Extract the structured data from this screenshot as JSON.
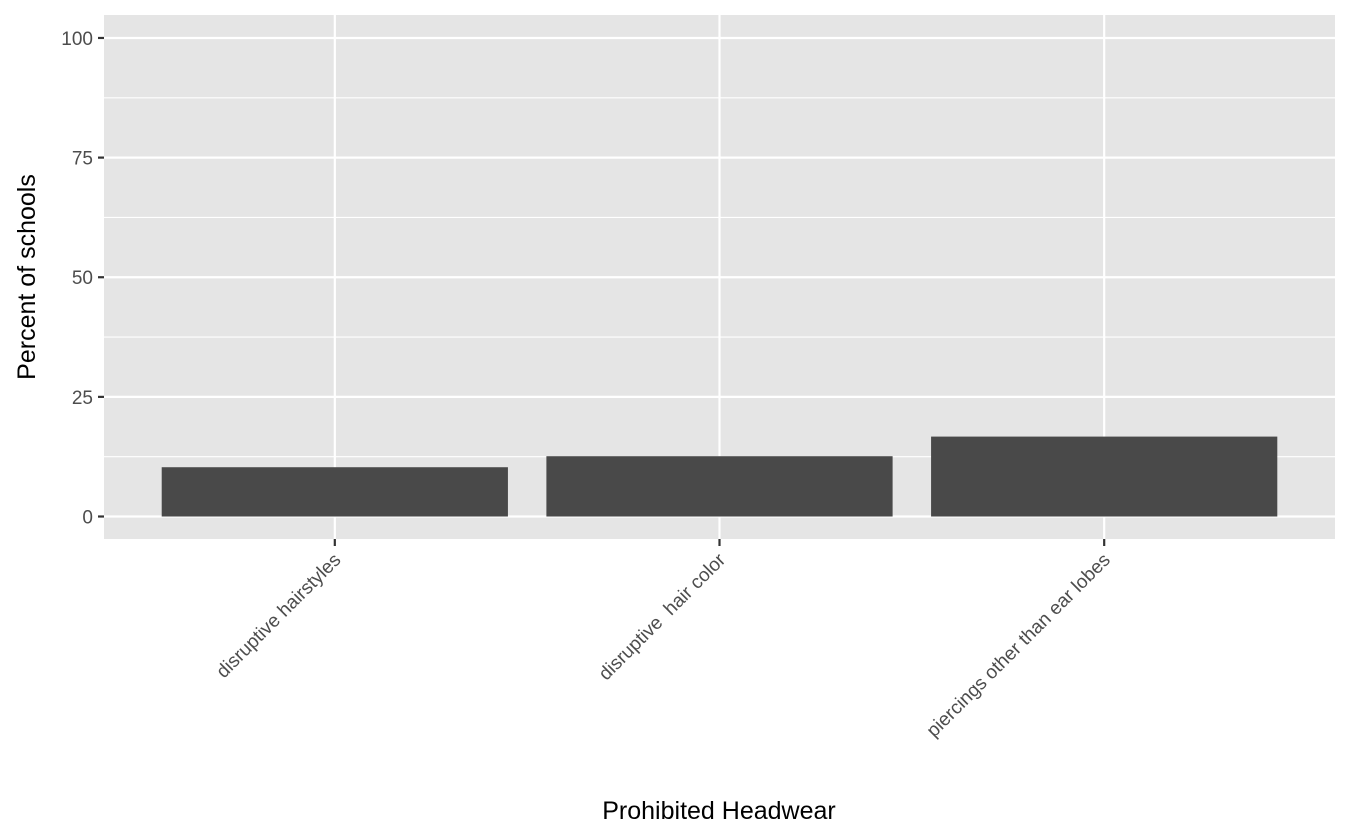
{
  "chart_data": {
    "type": "bar",
    "title": "",
    "xlabel": "Prohibited Headwear",
    "ylabel": "Percent of schools",
    "categories": [
      "disruptive hairstyles",
      "disruptive  hair color",
      "piercings other than ear lobes"
    ],
    "values": [
      10.3,
      12.6,
      16.7
    ],
    "ylim": [
      -4.7,
      104.8
    ],
    "yticks": [
      0,
      25,
      50,
      75,
      100
    ],
    "ytick_labels": [
      "0",
      "25",
      "50",
      "75",
      "100"
    ],
    "grid": true,
    "legend": "none",
    "colors": {
      "panel_background": "#e5e5e5",
      "grid": "#ffffff",
      "bar_fill": "#494949",
      "tick": "#333333",
      "tick_label": "#4d4d4d",
      "axis_title": "#000000"
    }
  }
}
